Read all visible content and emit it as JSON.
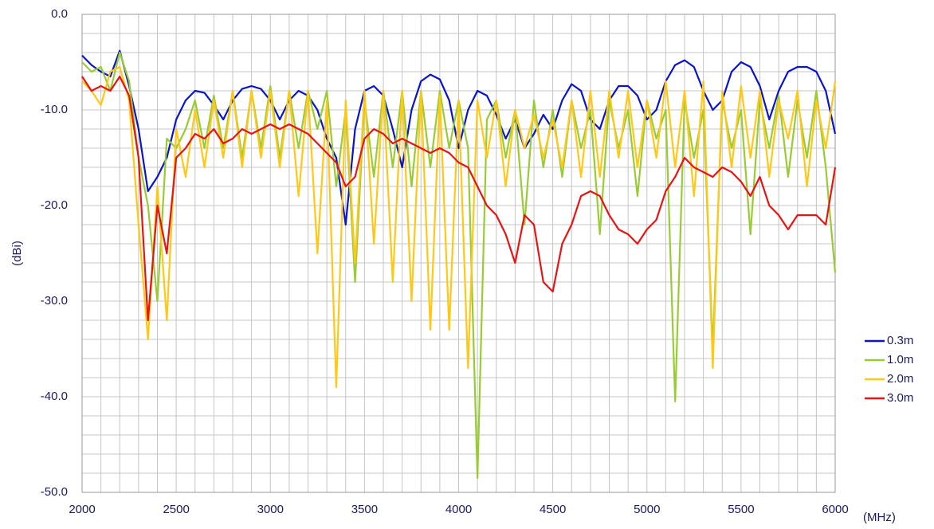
{
  "chart_data": {
    "type": "line",
    "x": [
      2000,
      2050,
      2100,
      2150,
      2200,
      2250,
      2300,
      2350,
      2400,
      2450,
      2500,
      2550,
      2600,
      2650,
      2700,
      2750,
      2800,
      2850,
      2900,
      2950,
      3000,
      3050,
      3100,
      3150,
      3200,
      3250,
      3300,
      3350,
      3400,
      3450,
      3500,
      3550,
      3600,
      3650,
      3700,
      3750,
      3800,
      3850,
      3900,
      3950,
      4000,
      4050,
      4100,
      4150,
      4200,
      4250,
      4300,
      4350,
      4400,
      4450,
      4500,
      4550,
      4600,
      4650,
      4700,
      4750,
      4800,
      4850,
      4900,
      4950,
      5000,
      5050,
      5100,
      5150,
      5200,
      5250,
      5300,
      5350,
      5400,
      5450,
      5500,
      5550,
      5600,
      5650,
      5700,
      5750,
      5800,
      5850,
      5900,
      5950,
      6000
    ],
    "series": [
      {
        "name": "0.3m",
        "color": "#0a14c8",
        "values": [
          -4.3,
          -5.3,
          -6.0,
          -6.5,
          -3.8,
          -7.5,
          -12,
          -18.5,
          -17,
          -15,
          -11,
          -9,
          -8,
          -8.2,
          -9.5,
          -11,
          -9,
          -7.8,
          -7.5,
          -7.8,
          -9,
          -11,
          -9,
          -8,
          -8.5,
          -10,
          -13,
          -15,
          -22,
          -12,
          -8,
          -7.5,
          -8.5,
          -12,
          -16,
          -10,
          -7,
          -6.3,
          -6.8,
          -9,
          -14,
          -10,
          -8,
          -8.5,
          -10.5,
          -13,
          -11,
          -14,
          -12.5,
          -10.5,
          -12,
          -9,
          -7.3,
          -8,
          -11,
          -12,
          -9,
          -7.5,
          -7.5,
          -8.5,
          -11,
          -10,
          -7,
          -5.3,
          -4.8,
          -5.5,
          -8,
          -10,
          -9,
          -6,
          -5,
          -5.5,
          -7.5,
          -11,
          -8,
          -6,
          -5.5,
          -5.5,
          -6,
          -8,
          -12.5
        ]
      },
      {
        "name": "1.0m",
        "color": "#99cc33",
        "values": [
          -5,
          -6,
          -5.5,
          -8,
          -4,
          -7,
          -15,
          -20,
          -30,
          -13,
          -14,
          -12,
          -9,
          -14,
          -8.5,
          -14,
          -8,
          -15,
          -8,
          -14,
          -7.5,
          -15,
          -8,
          -14,
          -8,
          -12,
          -8,
          -18,
          -10,
          -28,
          -9,
          -17,
          -8,
          -16,
          -8,
          -18,
          -8,
          -16,
          -8,
          -14,
          -9,
          -14,
          -48.5,
          -11,
          -9,
          -15,
          -10,
          -22,
          -9,
          -16,
          -10,
          -17,
          -9,
          -14,
          -10,
          -23,
          -9,
          -14,
          -10,
          -19,
          -9,
          -13,
          -10,
          -40.5,
          -9,
          -15,
          -10,
          -35,
          -9,
          -14,
          -10,
          -23,
          -9,
          -14,
          -8.5,
          -17,
          -9,
          -15,
          -8,
          -16,
          -27
        ]
      },
      {
        "name": "2.0m",
        "color": "#ffc814",
        "values": [
          -7,
          -8,
          -9.5,
          -6,
          -5.5,
          -9,
          -22,
          -34,
          -18,
          -32,
          -12,
          -17,
          -10,
          -16,
          -9,
          -15,
          -8,
          -16,
          -8,
          -15,
          -8,
          -16,
          -8,
          -19,
          -8,
          -25,
          -9,
          -39,
          -9,
          -26,
          -8,
          -24,
          -8,
          -28,
          -8,
          -30,
          -8,
          -33,
          -8.5,
          -33,
          -9,
          -37,
          -9,
          -15,
          -9,
          -18,
          -10,
          -14,
          -10.5,
          -15,
          -11,
          -16,
          -9,
          -17,
          -8,
          -17,
          -8,
          -15,
          -8,
          -16,
          -9,
          -15,
          -7,
          -16,
          -8,
          -19,
          -7,
          -37,
          -8,
          -16,
          -7.5,
          -15,
          -8,
          -17,
          -9,
          -13,
          -8,
          -18,
          -9,
          -14,
          -7
        ]
      },
      {
        "name": "3.0m",
        "color": "#e61414",
        "values": [
          -6.5,
          -8,
          -7.5,
          -8,
          -6.5,
          -8.5,
          -15,
          -32,
          -20,
          -25,
          -15,
          -14,
          -12.5,
          -13,
          -12,
          -13.5,
          -13,
          -12,
          -12.5,
          -12,
          -11.5,
          -12,
          -11.5,
          -12,
          -12.5,
          -13.5,
          -14.5,
          -15.5,
          -18,
          -17,
          -13,
          -12,
          -12.5,
          -13.5,
          -13,
          -13.5,
          -14,
          -14.5,
          -14,
          -14.5,
          -15.5,
          -16,
          -18,
          -20,
          -21,
          -23,
          -26,
          -21,
          -22,
          -28,
          -29,
          -24,
          -22,
          -19,
          -18.5,
          -19,
          -21,
          -22.5,
          -23,
          -24,
          -22.5,
          -21.5,
          -18.5,
          -17,
          -15,
          -16,
          -16.5,
          -17,
          -16,
          -16.5,
          -17.5,
          -19,
          -17,
          -20,
          -21,
          -22.5,
          -21,
          -21,
          -21,
          -22,
          -16
        ]
      }
    ],
    "xlim": [
      2000,
      6000
    ],
    "xticks": [
      2000,
      2500,
      3000,
      3500,
      4000,
      4500,
      5000,
      5500,
      6000
    ],
    "ylim": [
      -50,
      0
    ],
    "yticks": [
      {
        "value": 0,
        "label": "0.0"
      },
      {
        "value": -10,
        "label": "-10.0"
      },
      {
        "value": -20,
        "label": "-20.0"
      },
      {
        "value": -30,
        "label": "-30.0"
      },
      {
        "value": -40,
        "label": "-40.0"
      },
      {
        "value": -50,
        "label": "-50.0"
      }
    ],
    "xlabel": "(MHz)",
    "ylabel": "(dBi)",
    "grid": true,
    "minor_grid": 5,
    "legend": "right"
  }
}
